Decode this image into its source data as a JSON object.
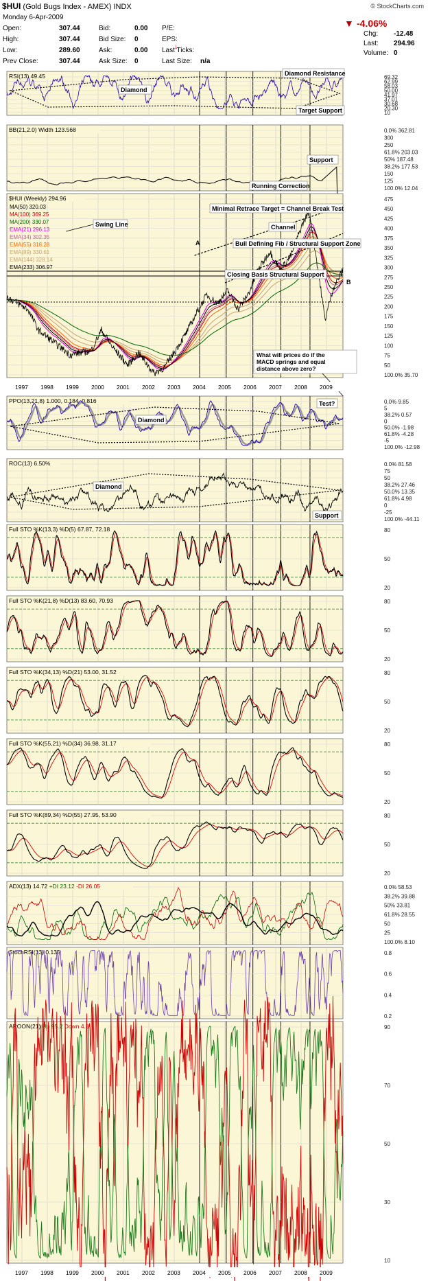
{
  "header": {
    "symbol": "$HUI",
    "name": "(Gold Bugs Index - AMEX)",
    "exchange": "INDX",
    "source": "© StockCharts.com",
    "date": "Monday 6-Apr-2009",
    "quote_rows": [
      {
        "l1": "Open:",
        "v1": "307.44",
        "l2": "Bid:",
        "v2": "0.00",
        "l3": "P/E:",
        "v3": ""
      },
      {
        "l1": "High:",
        "v1": "307.44",
        "l2": "Bid Size:",
        "v2": "0",
        "l3": "EPS:",
        "v3": ""
      },
      {
        "l1": "Low:",
        "v1": "289.60",
        "l2": "Ask:",
        "v2": "0.00",
        "l3": "Last Ticks:",
        "v3": ""
      },
      {
        "l1": "Prev Close:",
        "v1": "307.44",
        "l2": "Ask Size:",
        "v2": "0",
        "l3": "Last Size:",
        "v3": "n/a"
      }
    ],
    "pct_change": "-4.06%",
    "right_rows": [
      {
        "label": "Chg:",
        "value": "-12.48"
      },
      {
        "label": "Last:",
        "value": "294.96"
      },
      {
        "label": "Volume:",
        "value": "0"
      }
    ],
    "down_color": "#cc0000"
  },
  "colors": {
    "panel_bg": "#fbf6d6",
    "price": "#000000",
    "signal": "#dd0000",
    "indicator": "#2200aa",
    "stoch_rsi": "#6a3da8",
    "aroon_up": "#1a7a1a",
    "ma50": "#000000",
    "ma100": "#cc0000",
    "ma200": "#006600",
    "ema21": "#dd00dd",
    "ema34": "#b9679a",
    "ema55": "#ff6600",
    "ema89": "#c9a26e"
  },
  "year_labels": [
    "1997",
    "1998",
    "1999",
    "2000",
    "2001",
    "2002",
    "2003",
    "2004",
    "2005",
    "2006",
    "2007",
    "2008",
    "2009"
  ],
  "panels": {
    "rsi": {
      "title": "RSI(13) 49.45",
      "right_labels": [
        "69.32",
        "62.99",
        "58.03",
        "50.00",
        "41.97",
        "37.01",
        "30.68",
        "20.30",
        "10"
      ],
      "annotations": [
        "Diamond Resistance",
        "Diamond",
        "Target Support"
      ]
    },
    "bb": {
      "title": "BB(21,2.0) Width 123.568",
      "right_labels": [
        "0.0% 362.81",
        "300",
        "250",
        "61.8% 203.03",
        "50% 187.48",
        "38.2% 177.53",
        "150",
        "125",
        "100.0% 12.04"
      ],
      "annotations": [
        "Support",
        "Running Correction"
      ]
    },
    "price": {
      "title": "$HUI (Weekly) 294.96",
      "legend": [
        {
          "text": "MA(50) 320.03",
          "color": "#000000"
        },
        {
          "text": "MA(100) 369.25",
          "color": "#cc0000"
        },
        {
          "text": "MA(200) 330.07",
          "color": "#006600"
        },
        {
          "text": "EMA(21) 296.13",
          "color": "#dd00dd"
        },
        {
          "text": "EMA(34) 302.35",
          "color": "#b9679a"
        },
        {
          "text": "EMA(55) 318.28",
          "color": "#ff6600"
        },
        {
          "text": "EMA(89) 330.61",
          "color": "#c9a26e"
        },
        {
          "text": "EMA(144) 328.14",
          "color": "#c9a26e"
        },
        {
          "text": "EMA(233) 306.97",
          "color": "#000000"
        }
      ],
      "right_labels": [
        "475",
        "450",
        "425",
        "400",
        "375",
        "350",
        "325",
        "300",
        "275",
        "250",
        "225",
        "200",
        "175",
        "150",
        "125",
        "100",
        "75",
        "50",
        "100.0% 35.70"
      ],
      "annotations": {
        "swing_line": "Swing Line",
        "minimal_retrace": "Minimal Retrace Target = Channel Break Test",
        "channel": "Channel",
        "bull_fib": "Bull Defining Fib / Structural Support Zone",
        "closing_support": "Closing Basis Structural Support",
        "label_a": "A",
        "label_b": "B",
        "question": "What will prices do if the MACD springs and equal distance above zero?"
      }
    },
    "ppo": {
      "title": "PPO(13,21,8) 1.000, 0.184, 0.816",
      "right_labels": [
        "0.0% 9.85",
        "5",
        "38.2% 0.57",
        "0",
        "50.0% -1.98",
        "61.8% -4.28",
        "-5",
        "100.0% -12.98"
      ],
      "annotations": [
        "Diamond",
        "Test?"
      ]
    },
    "roc": {
      "title": "ROC(13) 6.50%",
      "right_labels": [
        "0.0% 81.58",
        "75",
        "50",
        "38.2% 27.46",
        "50.0% 13.35",
        "61.8% 4.98",
        "0",
        "-25",
        "100.0% -44.11"
      ],
      "annotations": [
        "Diamond",
        "Support"
      ]
    },
    "sto1": {
      "title": "Full STO %K(13,3) %D(5) 67.87, 72.18",
      "right_labels": [
        "80",
        "50",
        "20"
      ]
    },
    "sto2": {
      "title": "Full STO %K(21,8) %D(13) 83.60, 70.93",
      "right_labels": [
        "80",
        "50",
        "20"
      ]
    },
    "sto3": {
      "title": "Full STO %K(34,13) %D(21) 53.00, 31.52",
      "right_labels": [
        "80",
        "50",
        "20"
      ]
    },
    "sto4": {
      "title": "Full STO %K(55,21) %D(34) 36.98, 31.17",
      "right_labels": [
        "80",
        "50",
        "20"
      ]
    },
    "sto5": {
      "title": "Full STO %K(89,34) %D(55) 27.95, 53.90",
      "right_labels": [
        "80",
        "50",
        "20"
      ]
    },
    "adx": {
      "title": "ADX(13) 14.72 +DI 23.12 -DI 26.05",
      "title_segments": [
        {
          "text": "ADX(13) 14.72 ",
          "color": "#000000"
        },
        {
          "text": "+DI 23.12 ",
          "color": "#006600"
        },
        {
          "text": "-DI 26.05",
          "color": "#cc0000"
        }
      ],
      "right_labels": [
        "0.0% 58.53",
        "38.2% 39.88",
        "50% 33.81",
        "61.8% 28.55",
        "50",
        "25",
        "100.0% 8.10"
      ]
    },
    "stochrsi": {
      "title": "StochRSI(13) 0.135",
      "right_labels": [
        "0.8",
        "0.6",
        "0.4",
        "0.2"
      ]
    },
    "aroon": {
      "title": "AROON(21) Up 95.2 Down 4.8",
      "title_segments": [
        {
          "text": "AROON(21) ",
          "color": "#000000"
        },
        {
          "text": "Up 95.2 ",
          "color": "#1a7a1a"
        },
        {
          "text": "Down 4.8",
          "color": "#cc0000"
        }
      ],
      "right_labels": [
        "90",
        "70",
        "50",
        "30",
        "10"
      ]
    }
  },
  "chart_data": {
    "type": "line",
    "title": "$HUI (Gold Bugs Index - AMEX) INDX",
    "x": [
      "1997",
      "1998",
      "1999",
      "2000",
      "2001",
      "2002",
      "2003",
      "2004",
      "2005",
      "2006",
      "2007",
      "2008",
      "2009"
    ],
    "ylim": [
      35.7,
      475
    ],
    "series": [
      {
        "name": "$HUI (Weekly) 294.96",
        "values": [
          230,
          138,
          98,
          92,
          40,
          130,
          180,
          245,
          215,
          320,
          345,
          400,
          294.96
        ]
      },
      {
        "name": "MA(50) 320.03",
        "values": [
          240,
          170,
          130,
          100,
          72,
          90,
          150,
          220,
          225,
          270,
          320,
          360,
          320.03
        ]
      },
      {
        "name": "MA(100) 369.25",
        "values": [
          255,
          200,
          160,
          120,
          90,
          80,
          120,
          180,
          215,
          245,
          300,
          350,
          369.25
        ]
      },
      {
        "name": "MA(200) 330.07",
        "values": [
          265,
          230,
          200,
          170,
          140,
          120,
          130,
          160,
          190,
          220,
          260,
          300,
          330.07
        ]
      },
      {
        "name": "EMA(21) 296.13",
        "values": [
          235,
          145,
          105,
          95,
          50,
          125,
          175,
          240,
          220,
          310,
          340,
          390,
          296.13
        ]
      }
    ],
    "panels_note": "RSI, BB width, PPO, ROC, Full STO x5, ADX, StochRSI, AROON oscillator panels"
  }
}
